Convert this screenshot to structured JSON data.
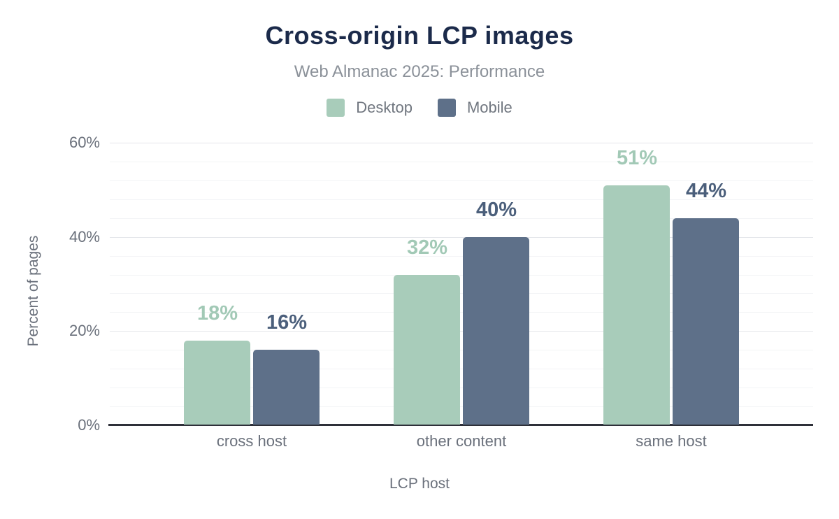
{
  "figure": {
    "title": "Cross-origin LCP images",
    "subtitle": "Web Almanac 2025: Performance"
  },
  "colors": {
    "background": "#ffffff",
    "title_text": "#1b2a4a",
    "subtitle_text": "#8b9199",
    "legend_text": "#70767f",
    "axis_text": "#6a707b",
    "axis_line": "#2e3039",
    "gridline_major": "#e4e6ea",
    "gridline_minor": "#f3f4f6",
    "desktop_bar": "#a8ccba",
    "mobile_bar": "#5e7089",
    "desktop_label": "#a2c9b6",
    "mobile_label": "#4b5f7b"
  },
  "chart_data": {
    "type": "bar",
    "title": "Cross-origin LCP images",
    "subtitle": "Web Almanac 2025: Performance",
    "categories": [
      "cross host",
      "other content",
      "same host"
    ],
    "series": [
      {
        "name": "Desktop",
        "values": [
          18,
          32,
          51
        ],
        "labels": [
          "18%",
          "32%",
          "51%"
        ],
        "color": "#a8ccba",
        "label_color": "#a2c9b6"
      },
      {
        "name": "Mobile",
        "values": [
          16,
          40,
          44
        ],
        "labels": [
          "16%",
          "40%",
          "44%"
        ],
        "color": "#5e7089",
        "label_color": "#4b5f7b"
      }
    ],
    "xlabel": "LCP host",
    "ylabel": "Percent of pages",
    "ylim": [
      0,
      60
    ],
    "yticks": [
      0,
      20,
      40,
      60
    ],
    "ytick_labels": [
      "0%",
      "20%",
      "40%",
      "60%"
    ],
    "minor_grid_step": 4,
    "grid": true,
    "legend_position": "top"
  }
}
